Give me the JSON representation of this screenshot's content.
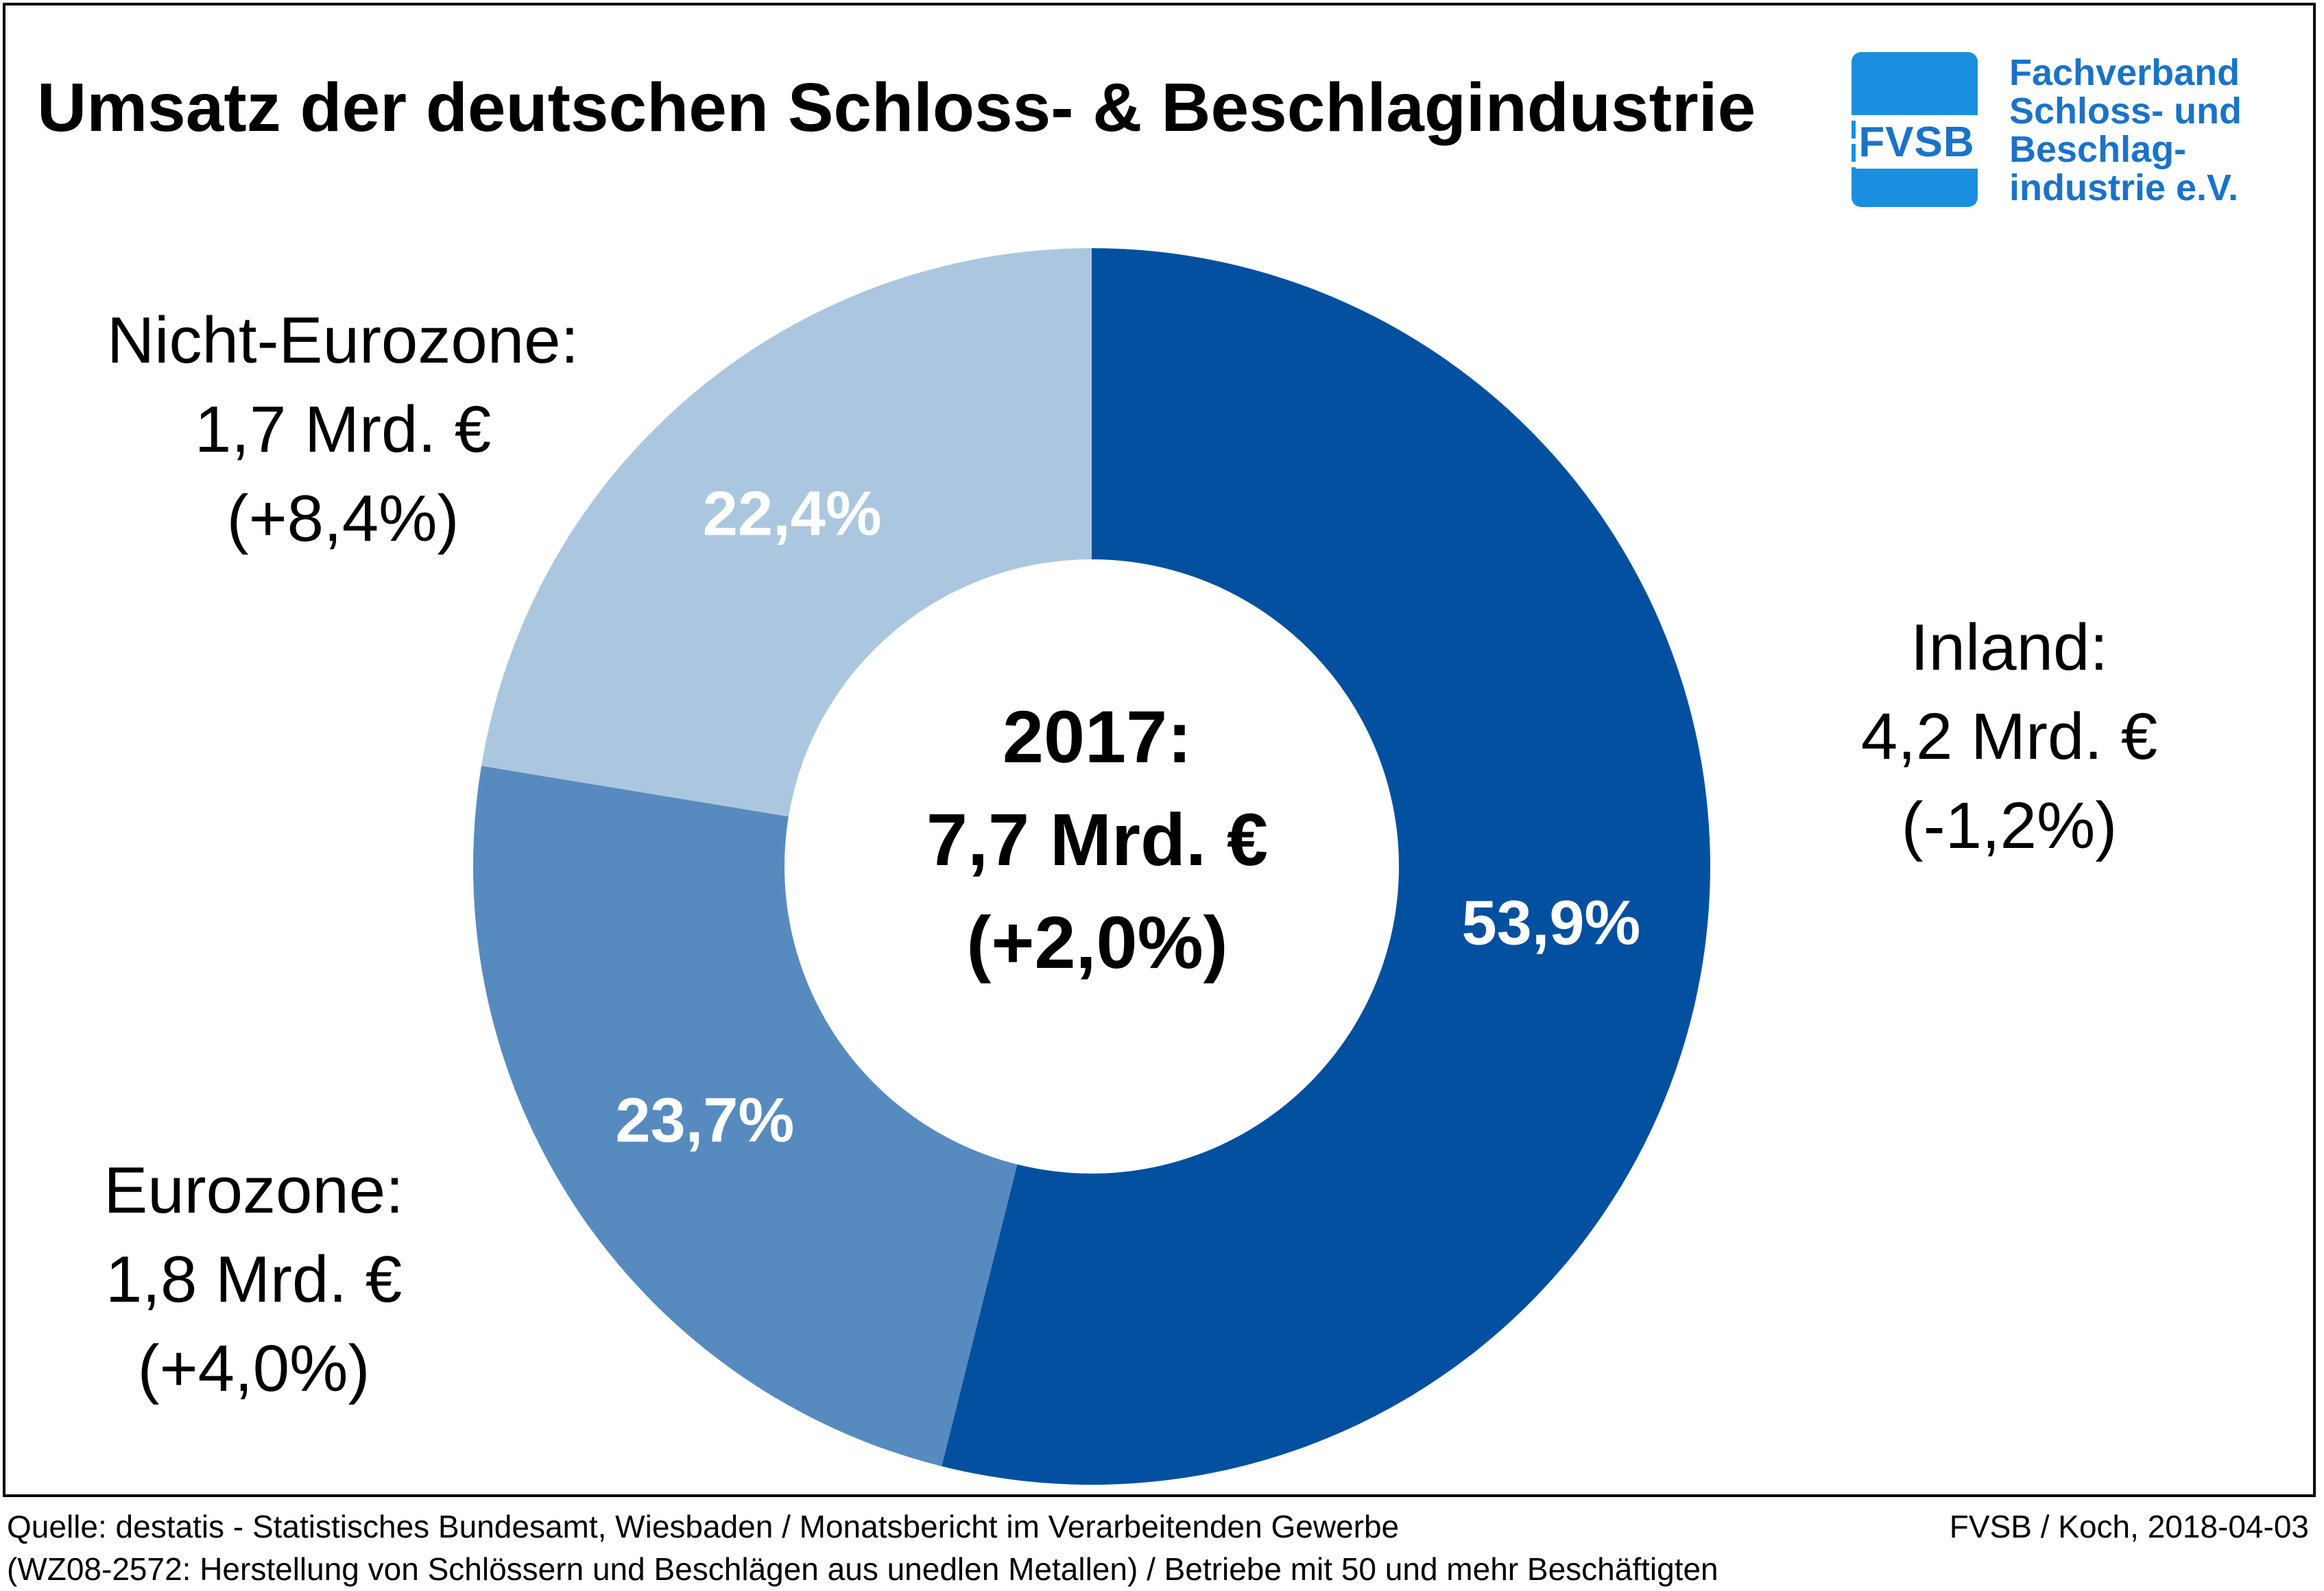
{
  "title": "Umsatz der deutschen Schloss- & Beschlagindustrie",
  "logo": {
    "mark": "FVSB",
    "org_lines": [
      "Fachverband",
      "Schloss- und",
      "Beschlag-",
      "industrie e.V."
    ],
    "color": "#1a73c9"
  },
  "center": {
    "line1": "2017:",
    "line2": "7,7 Mrd. €",
    "line3": "(+2,0%)"
  },
  "labels": {
    "inland": [
      "Inland:",
      "4,2 Mrd. €",
      "(-1,2%)"
    ],
    "eurozone": [
      "Eurozone:",
      "1,8 Mrd. €",
      "(+4,0%)"
    ],
    "nicht_eurozone": [
      "Nicht-Eurozone:",
      "1,7 Mrd. €",
      "(+8,4%)"
    ]
  },
  "footer": {
    "left_line1": "Quelle: destatis - Statistisches Bundesamt, Wiesbaden / Monatsbericht im Verarbeitenden Gewerbe",
    "left_line2": "(WZ08-2572: Herstellung von Schlössern und Beschlägen aus unedlen Metallen) / Betriebe mit 50 und mehr Beschäftigten",
    "right": "FVSB / Koch, 2018-04-03"
  },
  "chart_data": {
    "type": "pie",
    "donut": true,
    "start_angle_deg": 0,
    "direction": "clockwise",
    "slices": [
      {
        "label": "Inland",
        "value": 53.9,
        "value_label": "53,9%",
        "color": "#0350a0"
      },
      {
        "label": "Eurozone",
        "value": 23.7,
        "value_label": "23,7%",
        "color": "#578bc0"
      },
      {
        "label": "Nicht-Eurozone",
        "value": 22.4,
        "value_label": "22,4%",
        "color": "#abc7e0"
      }
    ]
  }
}
